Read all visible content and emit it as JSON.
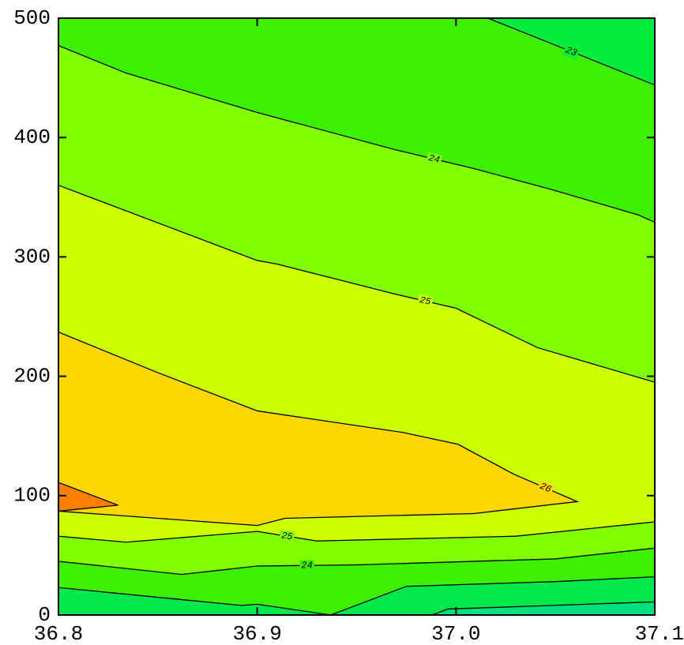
{
  "chart_data": {
    "type": "contour",
    "xlim": [
      36.8,
      37.1
    ],
    "ylim": [
      0,
      500
    ],
    "xticks": [
      36.8,
      36.9,
      {
        "value": 37,
        "label": "37.0"
      },
      37.1
    ],
    "yticks": [
      0,
      100,
      200,
      300,
      400,
      500
    ],
    "background": "#3cf000",
    "line_color": "#000000",
    "contours": [
      {
        "level": 24,
        "side": "below",
        "fill": "#80ff00",
        "x": [
          36.8,
          36.834,
          36.9,
          36.969,
          37.009,
          37.049,
          37.092,
          37.1
        ],
        "y": [
          477,
          454,
          421,
          390,
          374,
          356,
          335,
          329
        ]
      },
      {
        "level": 25,
        "side": "below",
        "fill": "#ccff00",
        "x": [
          36.8,
          36.9,
          36.91,
          36.969,
          37.0,
          37.041,
          37.1
        ],
        "y": [
          360,
          297,
          294,
          269,
          257,
          224,
          195
        ]
      },
      {
        "level": 26,
        "side": "inside",
        "fill": "#ffd700",
        "x": [
          36.8,
          36.85,
          36.9,
          36.973,
          37.001,
          37.029,
          37.061,
          37.009,
          36.914,
          36.9,
          36.8
        ],
        "y": [
          237,
          203,
          171,
          153,
          143,
          118,
          95,
          85,
          81,
          75,
          87
        ]
      },
      {
        "side": "inside",
        "fill": "#ff8000",
        "x": [
          36.8,
          36.83,
          36.8
        ],
        "y": [
          111,
          92,
          87
        ]
      },
      {
        "level": 25,
        "side": "below",
        "fill": "#80ff00",
        "x": [
          36.8,
          36.834,
          36.9,
          36.93,
          37.03,
          37.1
        ],
        "y": [
          66,
          61,
          70,
          62,
          66,
          78
        ]
      },
      {
        "level": 24,
        "side": "below",
        "fill": "#3cf000",
        "x": [
          36.8,
          36.862,
          36.9,
          36.95,
          37.05,
          37.1
        ],
        "y": [
          45,
          34,
          41,
          42,
          47,
          56
        ]
      },
      {
        "side": "below",
        "fill": "#00e84a",
        "x": [
          36.8,
          36.892,
          36.9,
          36.937,
          36.975,
          37.05,
          37.1
        ],
        "y": [
          23,
          8,
          9,
          0,
          24,
          28,
          32
        ]
      },
      {
        "side": "below",
        "fill": "#00e07c",
        "x": [
          36.988,
          36.996,
          37.1
        ],
        "y": [
          0,
          5,
          11
        ]
      },
      {
        "level": 23,
        "side": "above",
        "fill": "#00ee3a",
        "x": [
          37.016,
          37.1
        ],
        "y": [
          500,
          444
        ]
      }
    ]
  }
}
